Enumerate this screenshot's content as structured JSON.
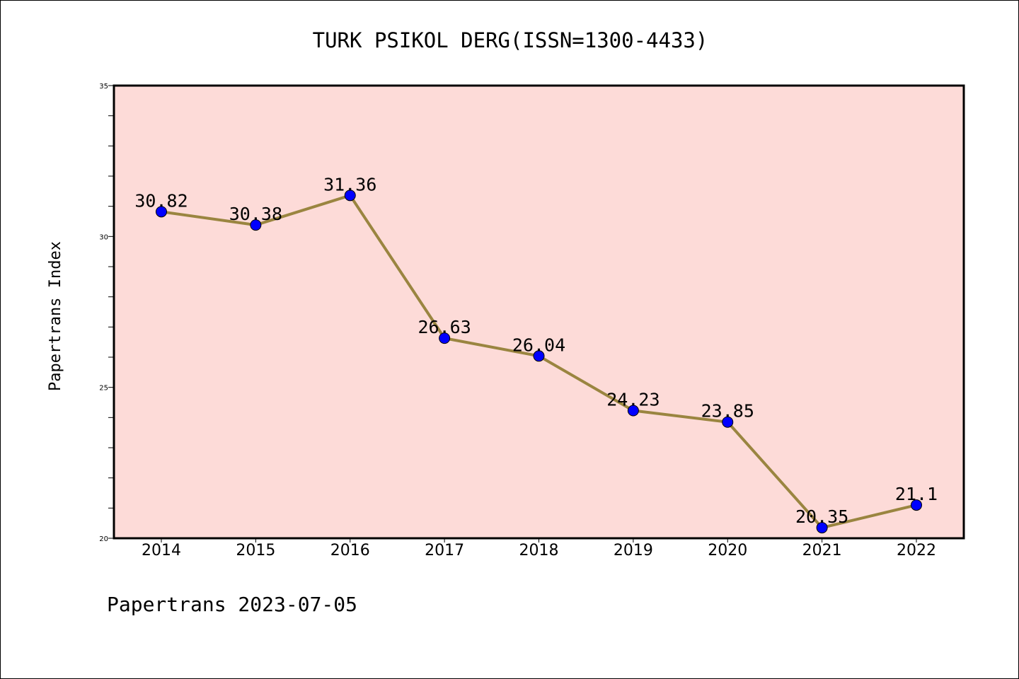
{
  "chart_data": {
    "type": "line",
    "title": "TURK PSIKOL DERG(ISSN=1300-4433)",
    "xlabel": "",
    "ylabel": "Papertrans Index",
    "x": [
      "2014",
      "2015",
      "2016",
      "2017",
      "2018",
      "2019",
      "2020",
      "2021",
      "2022"
    ],
    "series": [
      {
        "values": [
          30.82,
          30.38,
          31.36,
          26.63,
          26.04,
          24.23,
          23.85,
          20.35,
          21.1
        ],
        "labels": [
          "30.82",
          "30.38",
          "31.36",
          "26.63",
          "26.04",
          "24.23",
          "23.85",
          "20.35",
          "21.1"
        ]
      }
    ],
    "ylim": [
      20,
      35
    ],
    "yticks": [
      "20",
      "25",
      "30",
      "35"
    ],
    "grid": false,
    "legend": "none",
    "colors": {
      "plot_background": "#fddbd8",
      "line": "#9a8540",
      "marker": "#0000ff"
    }
  },
  "footer": "Papertrans 2023-07-05"
}
